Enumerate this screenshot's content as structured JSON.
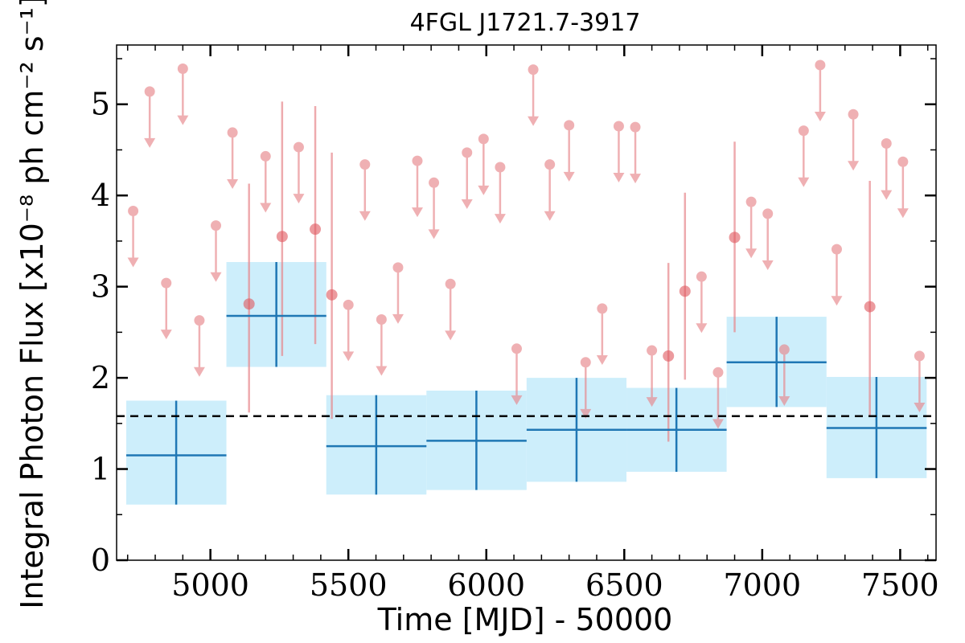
{
  "chart_data": {
    "type": "scatter",
    "title": "4FGL J1721.7-3917",
    "xlabel": "Time [MJD] - 50000",
    "ylabel": "Integral Photon Flux [x10⁻⁸ ph cm⁻² s⁻¹]",
    "xlim": [
      4660,
      7630
    ],
    "ylim": [
      0,
      5.65
    ],
    "x_ticks": [
      5000,
      5500,
      6000,
      6500,
      7000,
      7500
    ],
    "x_tick_labels": [
      "5000",
      "5500",
      "6000",
      "6500",
      "7000",
      "7500"
    ],
    "y_ticks": [
      0,
      1,
      2,
      3,
      4,
      5
    ],
    "y_tick_labels": [
      "0",
      "1",
      "2",
      "3",
      "4",
      "5"
    ],
    "grid": false,
    "colors": {
      "coarse_line": "#1f77b4",
      "coarse_band": "#cdeefb",
      "fine_marker": "#e8878c",
      "fine_detected": "#e0565e",
      "mean_line": "#000000"
    },
    "mean_flux": 1.58,
    "coarse_bins": [
      {
        "x_start": 4695,
        "x_end": 5058,
        "x_center": 4876,
        "y": 1.15,
        "y_low": 0.61,
        "y_high": 1.75
      },
      {
        "x_start": 5058,
        "x_end": 5420,
        "x_center": 5239,
        "y": 2.68,
        "y_low": 2.12,
        "y_high": 3.27
      },
      {
        "x_start": 5420,
        "x_end": 5783,
        "x_center": 5601,
        "y": 1.25,
        "y_low": 0.72,
        "y_high": 1.81
      },
      {
        "x_start": 5783,
        "x_end": 6146,
        "x_center": 5964,
        "y": 1.31,
        "y_low": 0.77,
        "y_high": 1.86
      },
      {
        "x_start": 6146,
        "x_end": 6508,
        "x_center": 6327,
        "y": 1.43,
        "y_low": 0.86,
        "y_high": 2.0
      },
      {
        "x_start": 6508,
        "x_end": 6871,
        "x_center": 6689,
        "y": 1.43,
        "y_low": 0.97,
        "y_high": 1.89
      },
      {
        "x_start": 6871,
        "x_end": 7233,
        "x_center": 7052,
        "y": 2.17,
        "y_low": 1.68,
        "y_high": 2.67
      },
      {
        "x_start": 7233,
        "x_end": 7596,
        "x_center": 7414,
        "y": 1.45,
        "y_low": 0.9,
        "y_high": 2.01
      }
    ],
    "fine_upper_limits": [
      {
        "x": 4720,
        "y": 3.83
      },
      {
        "x": 4780,
        "y": 5.14
      },
      {
        "x": 4840,
        "y": 3.04
      },
      {
        "x": 4900,
        "y": 5.39
      },
      {
        "x": 4960,
        "y": 2.63
      },
      {
        "x": 5020,
        "y": 3.67
      },
      {
        "x": 5080,
        "y": 4.69
      },
      {
        "x": 5200,
        "y": 4.43
      },
      {
        "x": 5320,
        "y": 4.53
      },
      {
        "x": 5500,
        "y": 2.8
      },
      {
        "x": 5560,
        "y": 4.34
      },
      {
        "x": 5620,
        "y": 2.64
      },
      {
        "x": 5680,
        "y": 3.21
      },
      {
        "x": 5750,
        "y": 4.38
      },
      {
        "x": 5810,
        "y": 4.14
      },
      {
        "x": 5870,
        "y": 3.03
      },
      {
        "x": 5930,
        "y": 4.47
      },
      {
        "x": 5990,
        "y": 4.62
      },
      {
        "x": 6050,
        "y": 4.31
      },
      {
        "x": 6110,
        "y": 2.32
      },
      {
        "x": 6170,
        "y": 5.38
      },
      {
        "x": 6230,
        "y": 4.34
      },
      {
        "x": 6300,
        "y": 4.77
      },
      {
        "x": 6360,
        "y": 2.17
      },
      {
        "x": 6420,
        "y": 2.76
      },
      {
        "x": 6480,
        "y": 4.76
      },
      {
        "x": 6540,
        "y": 4.75
      },
      {
        "x": 6600,
        "y": 2.3
      },
      {
        "x": 6780,
        "y": 3.11
      },
      {
        "x": 6840,
        "y": 2.06
      },
      {
        "x": 6960,
        "y": 3.93
      },
      {
        "x": 7020,
        "y": 3.8
      },
      {
        "x": 7080,
        "y": 2.31
      },
      {
        "x": 7150,
        "y": 4.71
      },
      {
        "x": 7210,
        "y": 5.43
      },
      {
        "x": 7270,
        "y": 3.41
      },
      {
        "x": 7330,
        "y": 4.89
      },
      {
        "x": 7450,
        "y": 4.57
      },
      {
        "x": 7510,
        "y": 4.37
      },
      {
        "x": 7570,
        "y": 2.24
      }
    ],
    "fine_detections": [
      {
        "x": 5140,
        "y": 2.81,
        "y_low": 1.62,
        "y_high": 4.13
      },
      {
        "x": 5260,
        "y": 3.55,
        "y_low": 2.24,
        "y_high": 5.03
      },
      {
        "x": 5380,
        "y": 3.63,
        "y_low": 2.37,
        "y_high": 4.98
      },
      {
        "x": 5440,
        "y": 2.91,
        "y_low": 1.55,
        "y_high": 4.47
      },
      {
        "x": 6660,
        "y": 2.24,
        "y_low": 1.3,
        "y_high": 3.26
      },
      {
        "x": 6720,
        "y": 2.95,
        "y_low": 1.98,
        "y_high": 4.03
      },
      {
        "x": 6900,
        "y": 3.54,
        "y_low": 2.5,
        "y_high": 4.59
      },
      {
        "x": 7390,
        "y": 2.78,
        "y_low": 1.59,
        "y_high": 4.16
      }
    ]
  }
}
